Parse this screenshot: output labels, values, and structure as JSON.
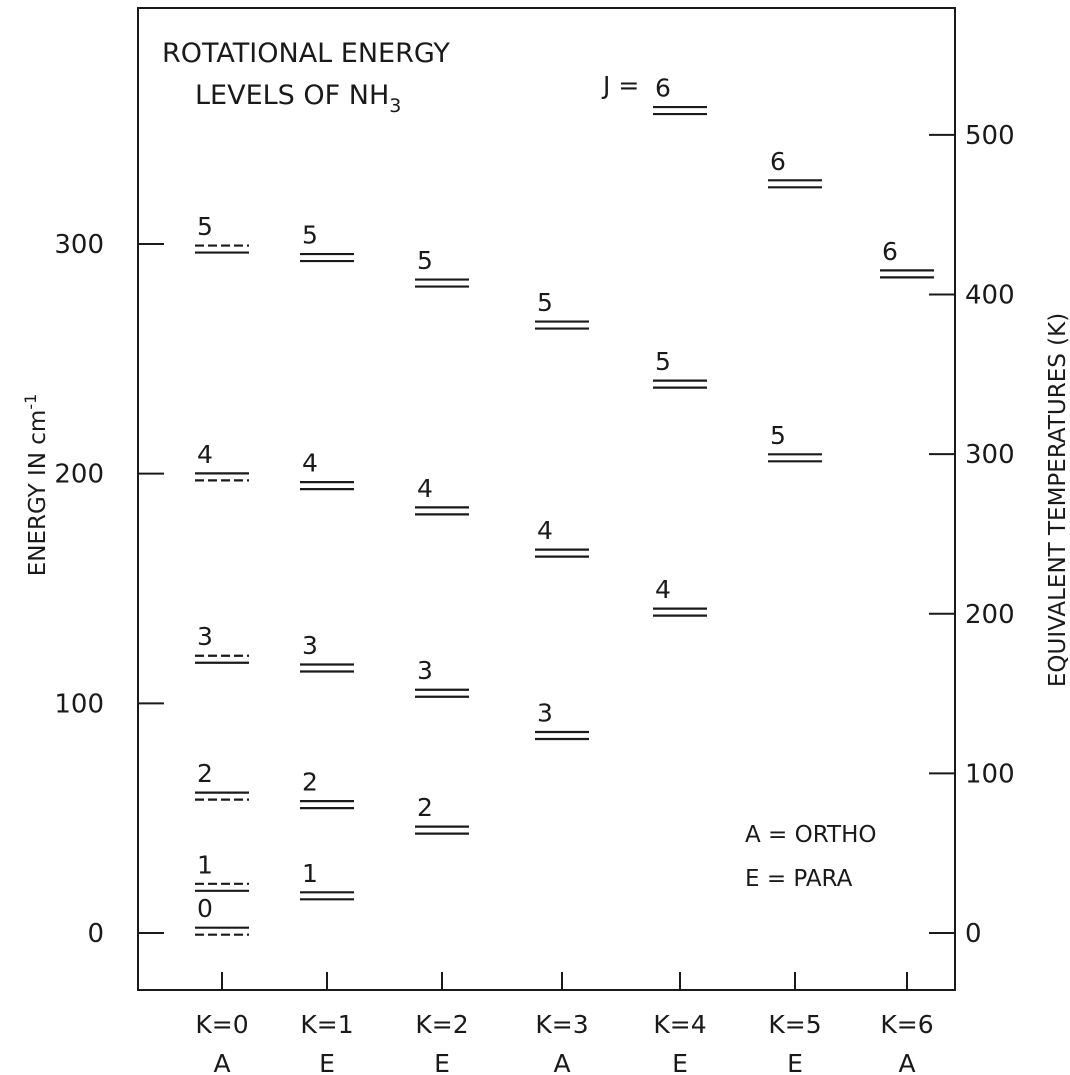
{
  "chart_data": {
    "type": "energy-level",
    "title_line1": "ROTATIONAL ENERGY",
    "title_line2_prefix": "LEVELS OF NH",
    "title_line2_subscript": "3",
    "ylabel_left": "ENERGY IN cm",
    "ylabel_left_superscript": "-1",
    "ylabel_right": "EQUIVALENT TEMPERATURES (K)",
    "ylim_energy_cm1": [
      -25,
      400
    ],
    "yticks_left": [
      0,
      100,
      200,
      300
    ],
    "yticks_right_K": [
      0,
      100,
      200,
      300,
      400,
      500
    ],
    "columns": [
      {
        "k_label": "K=0",
        "sym": "A"
      },
      {
        "k_label": "K=1",
        "sym": "E"
      },
      {
        "k_label": "K=2",
        "sym": "E"
      },
      {
        "k_label": "K=3",
        "sym": "A"
      },
      {
        "k_label": "K=4",
        "sym": "E"
      },
      {
        "k_label": "K=5",
        "sym": "E"
      },
      {
        "k_label": "K=6",
        "sym": "A"
      }
    ],
    "levels": [
      {
        "k": 0,
        "label": "0",
        "energy": 0.8,
        "upper": "solid",
        "lower": "dashed"
      },
      {
        "k": 0,
        "label": "1",
        "energy": 19.9,
        "upper": "dashed",
        "lower": "solid"
      },
      {
        "k": 0,
        "label": "2",
        "energy": 59.6,
        "upper": "solid",
        "lower": "dashed"
      },
      {
        "k": 0,
        "label": "3",
        "energy": 119.2,
        "upper": "dashed",
        "lower": "solid"
      },
      {
        "k": 0,
        "label": "4",
        "energy": 198.6,
        "upper": "solid",
        "lower": "dashed"
      },
      {
        "k": 0,
        "label": "5",
        "energy": 297.8,
        "upper": "dashed",
        "lower": "solid"
      },
      {
        "k": 1,
        "label": "1",
        "energy": 16.2,
        "upper": "solid",
        "lower": "solid"
      },
      {
        "k": 1,
        "label": "2",
        "energy": 55.9,
        "upper": "solid",
        "lower": "solid"
      },
      {
        "k": 1,
        "label": "3",
        "energy": 115.4,
        "upper": "solid",
        "lower": "solid"
      },
      {
        "k": 1,
        "label": "4",
        "energy": 194.8,
        "upper": "solid",
        "lower": "solid"
      },
      {
        "k": 1,
        "label": "5",
        "energy": 294.1,
        "upper": "solid",
        "lower": "solid"
      },
      {
        "k": 2,
        "label": "2",
        "energy": 44.8,
        "upper": "solid",
        "lower": "solid"
      },
      {
        "k": 2,
        "label": "3",
        "energy": 104.4,
        "upper": "solid",
        "lower": "solid"
      },
      {
        "k": 2,
        "label": "4",
        "energy": 183.8,
        "upper": "solid",
        "lower": "solid"
      },
      {
        "k": 2,
        "label": "5",
        "energy": 283.0,
        "upper": "solid",
        "lower": "solid"
      },
      {
        "k": 3,
        "label": "3",
        "energy": 86.0,
        "upper": "solid",
        "lower": "solid"
      },
      {
        "k": 3,
        "label": "4",
        "energy": 165.4,
        "upper": "solid",
        "lower": "solid"
      },
      {
        "k": 3,
        "label": "5",
        "energy": 264.7,
        "upper": "solid",
        "lower": "solid"
      },
      {
        "k": 4,
        "label": "4",
        "energy": 139.7,
        "upper": "solid",
        "lower": "solid"
      },
      {
        "k": 4,
        "label": "5",
        "energy": 239.0,
        "upper": "solid",
        "lower": "solid"
      },
      {
        "k": 4,
        "label": "6",
        "energy": 358.1,
        "upper": "solid",
        "lower": "solid"
      },
      {
        "k": 5,
        "label": "5",
        "energy": 206.9,
        "upper": "solid",
        "lower": "solid"
      },
      {
        "k": 5,
        "label": "6",
        "energy": 326.2,
        "upper": "solid",
        "lower": "solid"
      },
      {
        "k": 6,
        "label": "6",
        "energy": 287.0,
        "upper": "solid",
        "lower": "solid"
      }
    ],
    "annotation_j_prefix": "J =",
    "legend": [
      "A = ORTHO",
      "E = PARA"
    ],
    "temperature_per_cm1_K": 1.4388
  }
}
